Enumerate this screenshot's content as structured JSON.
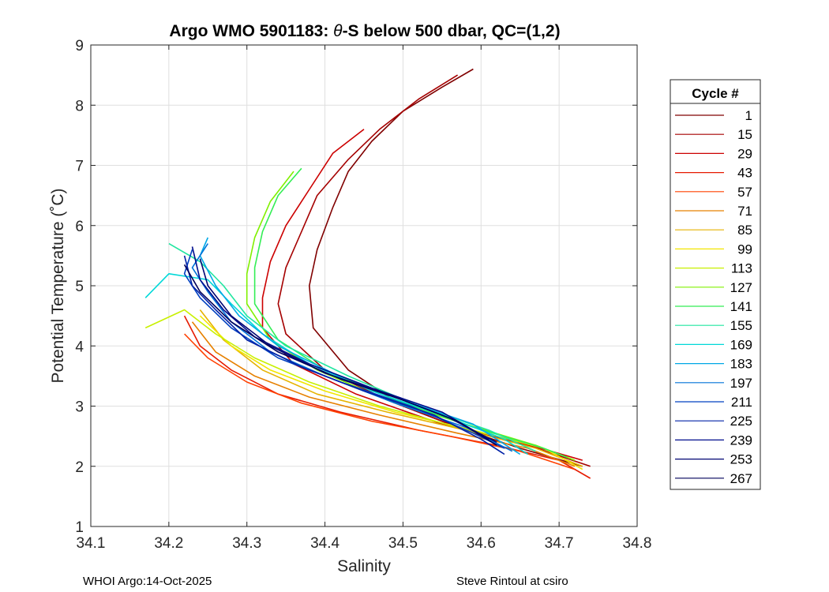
{
  "chart_data": {
    "type": "line",
    "title": "Argo WMO 5901183: θ-S below 500 dbar,  QC=(1,2)",
    "title_prefix": "Argo WMO 5901183: ",
    "title_theta": "θ",
    "title_suffix": "-S below 500 dbar,  QC=(1,2)",
    "xlabel": "Salinity",
    "ylabel": "Potential Temperature (˚C)",
    "xlim": [
      34.1,
      34.8
    ],
    "ylim": [
      1,
      9
    ],
    "xticks": [
      34.1,
      34.2,
      34.3,
      34.4,
      34.5,
      34.6,
      34.7,
      34.8
    ],
    "xtick_labels": [
      "34.1",
      "34.2",
      "34.3",
      "34.4",
      "34.5",
      "34.6",
      "34.7",
      "34.8"
    ],
    "yticks": [
      1,
      2,
      3,
      4,
      5,
      6,
      7,
      8,
      9
    ],
    "ytick_labels": [
      "1",
      "2",
      "3",
      "4",
      "5",
      "6",
      "7",
      "8",
      "9"
    ],
    "grid": true,
    "legend_position": "right-outside",
    "legend": {
      "title": "Cycle #",
      "entries": [
        {
          "label": "1",
          "color": "#800000"
        },
        {
          "label": "15",
          "color": "#a50000"
        },
        {
          "label": "29",
          "color": "#cc0000"
        },
        {
          "label": "43",
          "color": "#e61a00"
        },
        {
          "label": "57",
          "color": "#ff4000"
        },
        {
          "label": "71",
          "color": "#e68000"
        },
        {
          "label": "85",
          "color": "#e6b300"
        },
        {
          "label": "99",
          "color": "#f2e600"
        },
        {
          "label": "113",
          "color": "#c8f000"
        },
        {
          "label": "127",
          "color": "#80f000"
        },
        {
          "label": "141",
          "color": "#33ee55"
        },
        {
          "label": "155",
          "color": "#20e6a0"
        },
        {
          "label": "169",
          "color": "#00d8d8"
        },
        {
          "label": "183",
          "color": "#00a8e6"
        },
        {
          "label": "197",
          "color": "#0073d9"
        },
        {
          "label": "211",
          "color": "#0040c0"
        },
        {
          "label": "225",
          "color": "#0020a6"
        },
        {
          "label": "239",
          "color": "#000d8c"
        },
        {
          "label": "253",
          "color": "#000573"
        },
        {
          "label": "267",
          "color": "#00005a"
        }
      ]
    },
    "series": [
      {
        "name": "1",
        "color": "#800000",
        "points": [
          [
            34.59,
            8.6
          ],
          [
            34.55,
            8.3
          ],
          [
            34.5,
            7.9
          ],
          [
            34.46,
            7.4
          ],
          [
            34.43,
            6.9
          ],
          [
            34.41,
            6.3
          ],
          [
            34.39,
            5.6
          ],
          [
            34.38,
            5.0
          ],
          [
            34.385,
            4.3
          ],
          [
            34.43,
            3.6
          ],
          [
            34.5,
            3.0
          ],
          [
            34.58,
            2.6
          ],
          [
            34.65,
            2.3
          ],
          [
            34.73,
            2.0
          ]
        ]
      },
      {
        "name": "15",
        "color": "#a50000",
        "points": [
          [
            34.57,
            8.5
          ],
          [
            34.52,
            8.1
          ],
          [
            34.47,
            7.6
          ],
          [
            34.43,
            7.1
          ],
          [
            34.39,
            6.5
          ],
          [
            34.37,
            5.9
          ],
          [
            34.35,
            5.3
          ],
          [
            34.34,
            4.7
          ],
          [
            34.35,
            4.2
          ],
          [
            34.4,
            3.6
          ],
          [
            34.48,
            3.1
          ],
          [
            34.57,
            2.65
          ],
          [
            34.66,
            2.35
          ],
          [
            34.74,
            2.0
          ]
        ]
      },
      {
        "name": "29",
        "color": "#cc0000",
        "points": [
          [
            34.45,
            7.6
          ],
          [
            34.41,
            7.2
          ],
          [
            34.38,
            6.6
          ],
          [
            34.35,
            6.0
          ],
          [
            34.33,
            5.4
          ],
          [
            34.32,
            4.8
          ],
          [
            34.32,
            4.3
          ],
          [
            34.36,
            3.7
          ],
          [
            34.44,
            3.2
          ],
          [
            34.55,
            2.7
          ],
          [
            34.65,
            2.4
          ],
          [
            34.73,
            2.1
          ]
        ]
      },
      {
        "name": "43",
        "color": "#e61a00",
        "points": [
          [
            34.22,
            4.5
          ],
          [
            34.24,
            4.0
          ],
          [
            34.28,
            3.6
          ],
          [
            34.34,
            3.2
          ],
          [
            34.42,
            2.9
          ],
          [
            34.52,
            2.6
          ],
          [
            34.62,
            2.35
          ],
          [
            34.7,
            2.1
          ],
          [
            34.74,
            1.8
          ]
        ]
      },
      {
        "name": "57",
        "color": "#ff4000",
        "points": [
          [
            34.22,
            4.2
          ],
          [
            34.25,
            3.8
          ],
          [
            34.3,
            3.4
          ],
          [
            34.37,
            3.05
          ],
          [
            34.46,
            2.75
          ],
          [
            34.56,
            2.5
          ],
          [
            34.65,
            2.25
          ],
          [
            34.72,
            1.95
          ]
        ]
      },
      {
        "name": "71",
        "color": "#e68000",
        "points": [
          [
            34.23,
            4.4
          ],
          [
            34.26,
            3.9
          ],
          [
            34.31,
            3.5
          ],
          [
            34.38,
            3.15
          ],
          [
            34.47,
            2.85
          ],
          [
            34.57,
            2.55
          ],
          [
            34.66,
            2.3
          ],
          [
            34.72,
            2.0
          ]
        ]
      },
      {
        "name": "85",
        "color": "#e6b300",
        "points": [
          [
            34.24,
            4.6
          ],
          [
            34.27,
            4.1
          ],
          [
            34.32,
            3.6
          ],
          [
            34.39,
            3.2
          ],
          [
            34.48,
            2.9
          ],
          [
            34.58,
            2.6
          ],
          [
            34.67,
            2.3
          ],
          [
            34.73,
            2.0
          ]
        ]
      },
      {
        "name": "99",
        "color": "#f2e600",
        "points": [
          [
            34.24,
            4.5
          ],
          [
            34.28,
            4.0
          ],
          [
            34.33,
            3.6
          ],
          [
            34.4,
            3.25
          ],
          [
            34.49,
            2.9
          ],
          [
            34.59,
            2.6
          ],
          [
            34.68,
            2.3
          ],
          [
            34.73,
            1.95
          ]
        ]
      },
      {
        "name": "113",
        "color": "#c8f000",
        "points": [
          [
            34.17,
            4.3
          ],
          [
            34.22,
            4.6
          ],
          [
            34.26,
            4.2
          ],
          [
            34.31,
            3.8
          ],
          [
            34.38,
            3.4
          ],
          [
            34.47,
            3.0
          ],
          [
            34.57,
            2.65
          ],
          [
            34.67,
            2.35
          ],
          [
            34.72,
            2.1
          ]
        ]
      },
      {
        "name": "127",
        "color": "#80f000",
        "points": [
          [
            34.36,
            6.9
          ],
          [
            34.33,
            6.4
          ],
          [
            34.31,
            5.8
          ],
          [
            34.3,
            5.2
          ],
          [
            34.3,
            4.7
          ],
          [
            34.33,
            4.1
          ],
          [
            34.39,
            3.6
          ],
          [
            34.48,
            3.1
          ],
          [
            34.58,
            2.7
          ],
          [
            34.67,
            2.35
          ],
          [
            34.72,
            2.1
          ]
        ]
      },
      {
        "name": "141",
        "color": "#33ee55",
        "points": [
          [
            34.37,
            6.95
          ],
          [
            34.34,
            6.5
          ],
          [
            34.32,
            5.9
          ],
          [
            34.31,
            5.3
          ],
          [
            34.31,
            4.7
          ],
          [
            34.34,
            4.1
          ],
          [
            34.4,
            3.6
          ],
          [
            34.49,
            3.1
          ],
          [
            34.59,
            2.65
          ],
          [
            34.68,
            2.3
          ],
          [
            34.71,
            2.15
          ]
        ]
      },
      {
        "name": "155",
        "color": "#20e6a0",
        "points": [
          [
            34.2,
            5.7
          ],
          [
            34.24,
            5.4
          ],
          [
            34.27,
            5.0
          ],
          [
            34.3,
            4.5
          ],
          [
            34.35,
            4.0
          ],
          [
            34.43,
            3.5
          ],
          [
            34.52,
            3.0
          ],
          [
            34.61,
            2.6
          ],
          [
            34.67,
            2.25
          ]
        ]
      },
      {
        "name": "169",
        "color": "#00d8d8",
        "points": [
          [
            34.17,
            4.8
          ],
          [
            34.2,
            5.2
          ],
          [
            34.25,
            5.1
          ],
          [
            34.28,
            4.7
          ],
          [
            34.32,
            4.2
          ],
          [
            34.38,
            3.7
          ],
          [
            34.46,
            3.25
          ],
          [
            34.55,
            2.85
          ],
          [
            34.63,
            2.45
          ],
          [
            34.66,
            2.2
          ]
        ]
      },
      {
        "name": "183",
        "color": "#00a8e6",
        "points": [
          [
            34.25,
            5.8
          ],
          [
            34.24,
            5.5
          ],
          [
            34.26,
            5.0
          ],
          [
            34.29,
            4.5
          ],
          [
            34.34,
            4.0
          ],
          [
            34.41,
            3.55
          ],
          [
            34.5,
            3.1
          ],
          [
            34.59,
            2.7
          ],
          [
            34.65,
            2.2
          ]
        ]
      },
      {
        "name": "197",
        "color": "#0073d9",
        "points": [
          [
            34.25,
            5.7
          ],
          [
            34.23,
            5.3
          ],
          [
            34.25,
            4.9
          ],
          [
            34.28,
            4.4
          ],
          [
            34.33,
            3.9
          ],
          [
            34.4,
            3.5
          ],
          [
            34.49,
            3.05
          ],
          [
            34.58,
            2.65
          ],
          [
            34.64,
            2.25
          ]
        ]
      },
      {
        "name": "211",
        "color": "#0040c0",
        "points": [
          [
            34.23,
            5.6
          ],
          [
            34.22,
            5.2
          ],
          [
            34.24,
            4.8
          ],
          [
            34.28,
            4.3
          ],
          [
            34.34,
            3.8
          ],
          [
            34.42,
            3.4
          ],
          [
            34.51,
            3.0
          ],
          [
            34.59,
            2.55
          ],
          [
            34.63,
            2.3
          ]
        ]
      },
      {
        "name": "225",
        "color": "#0020a6",
        "points": [
          [
            34.22,
            5.5
          ],
          [
            34.23,
            5.0
          ],
          [
            34.26,
            4.6
          ],
          [
            34.3,
            4.1
          ],
          [
            34.37,
            3.65
          ],
          [
            34.45,
            3.25
          ],
          [
            34.54,
            2.85
          ],
          [
            34.6,
            2.45
          ],
          [
            34.63,
            2.2
          ]
        ]
      },
      {
        "name": "239",
        "color": "#000d8c",
        "points": [
          [
            34.23,
            5.65
          ],
          [
            34.24,
            5.1
          ],
          [
            34.27,
            4.6
          ],
          [
            34.31,
            4.15
          ],
          [
            34.38,
            3.7
          ],
          [
            34.46,
            3.3
          ],
          [
            34.55,
            2.9
          ],
          [
            34.61,
            2.45
          ]
        ]
      },
      {
        "name": "253",
        "color": "#000573",
        "points": [
          [
            34.24,
            5.45
          ],
          [
            34.25,
            5.0
          ],
          [
            34.28,
            4.5
          ],
          [
            34.33,
            4.0
          ],
          [
            34.4,
            3.55
          ],
          [
            34.48,
            3.2
          ],
          [
            34.56,
            2.8
          ],
          [
            34.62,
            2.4
          ]
        ]
      },
      {
        "name": "267",
        "color": "#00005a",
        "points": [
          [
            34.22,
            5.35
          ],
          [
            34.24,
            4.9
          ],
          [
            34.28,
            4.4
          ],
          [
            34.34,
            3.9
          ],
          [
            34.42,
            3.45
          ],
          [
            34.5,
            3.1
          ],
          [
            34.57,
            2.75
          ],
          [
            34.62,
            2.35
          ]
        ]
      }
    ]
  },
  "footer": {
    "left": "WHOI Argo:14-Oct-2025",
    "right": "Steve Rintoul at csiro"
  }
}
